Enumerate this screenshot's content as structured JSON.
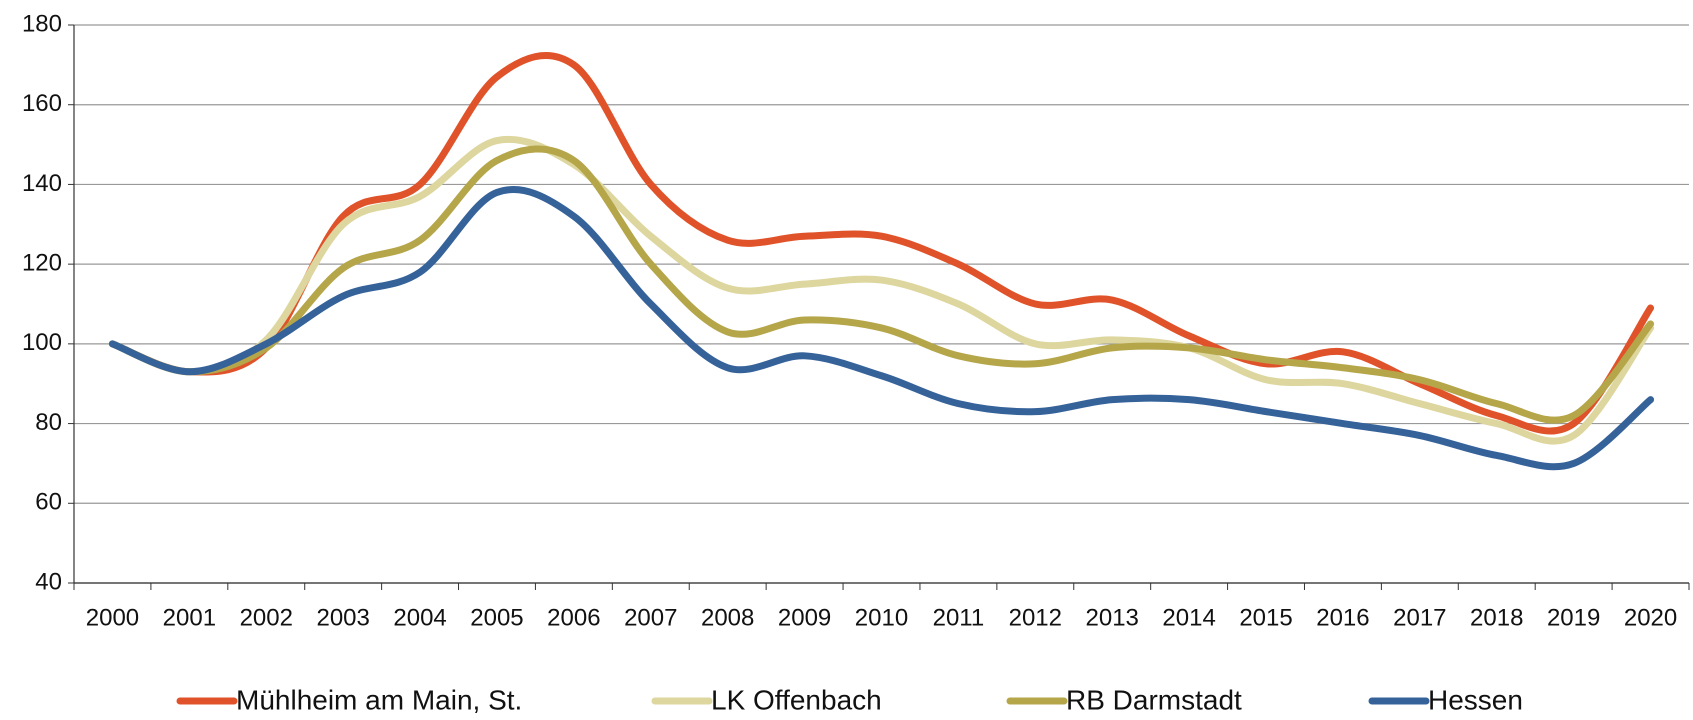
{
  "chart_data": {
    "type": "line",
    "categories": [
      "2000",
      "2001",
      "2002",
      "2003",
      "2004",
      "2005",
      "2006",
      "2007",
      "2008",
      "2009",
      "2010",
      "2011",
      "2012",
      "2013",
      "2014",
      "2015",
      "2016",
      "2017",
      "2018",
      "2019",
      "2020"
    ],
    "series": [
      {
        "name": "Mühlheim am Main, St.",
        "color": "#e0532a",
        "values": [
          100,
          93,
          99,
          132,
          140,
          167,
          170,
          140,
          126,
          127,
          127,
          120,
          110,
          111,
          102,
          95,
          98,
          90,
          82,
          80,
          109
        ]
      },
      {
        "name": "LK Offenbach",
        "color": "#ddd69e",
        "values": [
          100,
          93,
          101,
          130,
          137,
          151,
          145,
          127,
          114,
          115,
          116,
          110,
          100,
          101,
          99,
          91,
          90,
          85,
          80,
          77,
          104
        ]
      },
      {
        "name": "RB Darmstadt",
        "color": "#b5a64a",
        "values": [
          100,
          93,
          99,
          119,
          126,
          146,
          146,
          120,
          103,
          106,
          104,
          97,
          95,
          99,
          99,
          96,
          94,
          91,
          85,
          82,
          105
        ]
      },
      {
        "name": "Hessen",
        "color": "#36629a",
        "values": [
          100,
          93,
          100,
          112,
          118,
          138,
          132,
          110,
          94,
          97,
          92,
          85,
          83,
          86,
          86,
          83,
          80,
          77,
          72,
          70,
          86
        ]
      }
    ],
    "ylim": [
      40,
      180
    ],
    "yticks": [
      40,
      60,
      80,
      100,
      120,
      140,
      160,
      180
    ],
    "grid": true
  }
}
